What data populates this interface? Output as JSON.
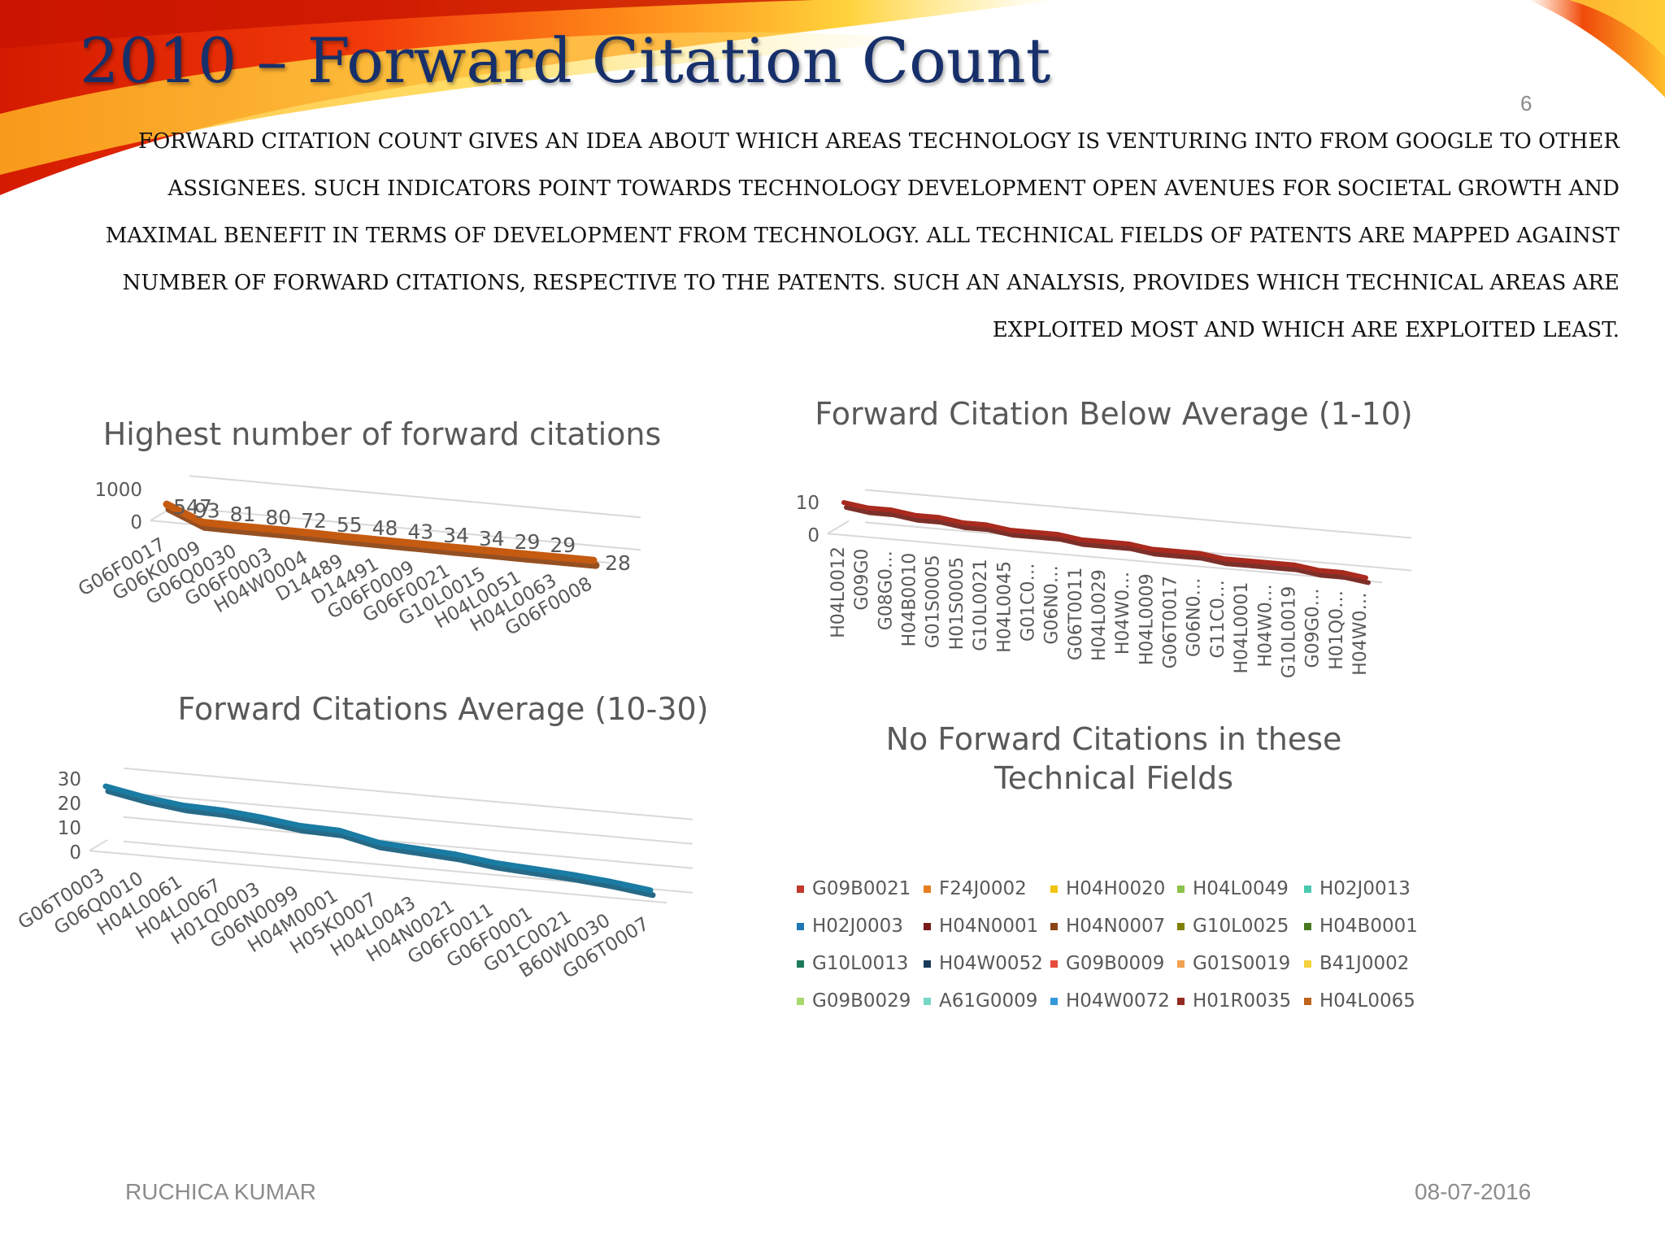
{
  "slide": {
    "title": "2010 – Forward Citation Count",
    "number": "6",
    "description": "Forward citation count gives an idea about which areas technology is venturing into from Google to other assignees. Such indicators point towards technology development open avenues for societal growth and maximal benefit in terms of development from technology. All technical fields of patents are mapped against number of forward citations, respective to the patents. Such an analysis, provides which technical areas are exploited most and which are exploited least.",
    "author": "RUCHICA KUMAR",
    "date": "08-07-2016"
  },
  "colors": {
    "title": "#17306b",
    "chart1_line": "#c55a11",
    "chart2_line": "#1a7ba3",
    "chart3_line": "#a92a1f",
    "axis_text": "#595959"
  },
  "chart_data": [
    {
      "type": "line",
      "title": "Highest number of forward citations",
      "categories": [
        "G06F0017",
        "G06K0009",
        "G06Q0030",
        "G06F0003",
        "H04W0004",
        "D14489",
        "D14491",
        "G06F0009",
        "G06F0021",
        "G10L0015",
        "H04L0051",
        "H04L0063",
        "G06F0008"
      ],
      "values": [
        547,
        93,
        81,
        80,
        72,
        55,
        48,
        43,
        34,
        34,
        29,
        29,
        28
      ],
      "data_labels": [
        "547",
        "93",
        "81",
        "80",
        "72",
        "55",
        "48",
        "43",
        "34",
        "34",
        "29",
        "29",
        "28"
      ],
      "yticks": [
        "1000",
        "0"
      ],
      "ylim": [
        0,
        1000
      ]
    },
    {
      "type": "line",
      "title": "Forward Citations Average (10-30)",
      "categories": [
        "G06T0003",
        "G06Q0010",
        "H04L0061",
        "H04L0067",
        "H01Q0003",
        "G06N0099",
        "H04M0001",
        "H05K0007",
        "H04L0043",
        "H04N0021",
        "G06F0011",
        "G06F0001",
        "G01C0021",
        "B60W0030",
        "G06T0007"
      ],
      "values": [
        27,
        24,
        22,
        21.5,
        20,
        18,
        17.5,
        14,
        13,
        12,
        10,
        9,
        8,
        6.5,
        4.5
      ],
      "yticks": [
        "30",
        "20",
        "10",
        "0"
      ],
      "ylim": [
        0,
        30
      ]
    },
    {
      "type": "line",
      "title": "Forward Citation Below Average (1-10)",
      "categories": [
        "H04L0012",
        "G09G0",
        "G08G0…",
        "H04B0010",
        "G01S0005",
        "H01S0005",
        "G10L0021",
        "H04L0045",
        "G01C0…",
        "G06N0…",
        "G06T0011",
        "H04L0029",
        "H04W0…",
        "H04L0009",
        "G06T0017",
        "G06N0…",
        "G11C0…",
        "H04L0001",
        "H04W0…",
        "G10L0019",
        "G09G0…",
        "H01Q0…",
        "H04W0…"
      ],
      "values": [
        10,
        9,
        9,
        8,
        8,
        7,
        7,
        6,
        6,
        6,
        5,
        5,
        5,
        4,
        4,
        4,
        3,
        3,
        3,
        3,
        2,
        2,
        1
      ],
      "yticks": [
        "10",
        "0"
      ],
      "ylim": [
        0,
        10
      ]
    },
    {
      "type": "line",
      "title": "No Forward Citations in these Technical Fields",
      "legend": [
        {
          "name": "G09B0021",
          "color": "#c0392b"
        },
        {
          "name": "F24J0002",
          "color": "#e67e22"
        },
        {
          "name": "H04H0020",
          "color": "#f1c40f"
        },
        {
          "name": "H04L0049",
          "color": "#8bc34a"
        },
        {
          "name": "H02J0013",
          "color": "#48c9b0"
        },
        {
          "name": "H02J0003",
          "color": "#1f77b4"
        },
        {
          "name": "H04N0001",
          "color": "#7b1a1a"
        },
        {
          "name": "H04N0007",
          "color": "#8b4513"
        },
        {
          "name": "G10L0025",
          "color": "#808000"
        },
        {
          "name": "H04B0001",
          "color": "#4a7a1f"
        },
        {
          "name": "G10L0013",
          "color": "#1e7a5a"
        },
        {
          "name": "H04W0052",
          "color": "#1b3b5a"
        },
        {
          "name": "G09B0009",
          "color": "#e74c3c"
        },
        {
          "name": "G01S0019",
          "color": "#f0a050"
        },
        {
          "name": "B41J0002",
          "color": "#f4d03f"
        },
        {
          "name": "G09B0029",
          "color": "#a9d86e"
        },
        {
          "name": "A61G0009",
          "color": "#76d7c4"
        },
        {
          "name": "H04W0072",
          "color": "#3498db"
        },
        {
          "name": "H01R0035",
          "color": "#922b21"
        },
        {
          "name": "H04L0065",
          "color": "#c0651a"
        }
      ]
    }
  ]
}
